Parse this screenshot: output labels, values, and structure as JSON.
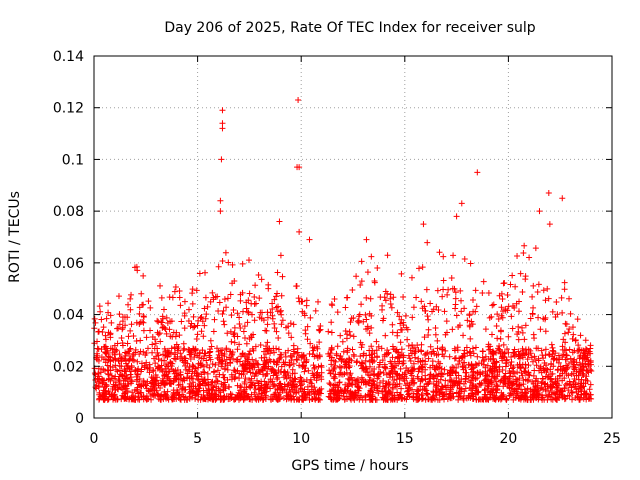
{
  "chart_data": {
    "type": "scatter",
    "title": "Day 206 of 2025, Rate Of TEC Index for receiver sulp",
    "xlabel": "GPS time / hours",
    "ylabel": "ROTI / TECUs",
    "xlim": [
      0,
      25
    ],
    "ylim": [
      0,
      0.14
    ],
    "xticks": [
      0,
      5,
      10,
      15,
      20,
      25
    ],
    "xtick_labels": [
      "0",
      "5",
      "10",
      "15",
      "20",
      "25"
    ],
    "yticks": [
      0,
      0.02,
      0.04,
      0.06,
      0.08,
      0.1,
      0.12,
      0.14
    ],
    "ytick_labels": [
      "0",
      "0.02",
      "0.04",
      "0.06",
      "0.08",
      "0.1",
      "0.12",
      "0.14"
    ],
    "grid": true,
    "marker": "+",
    "color": "#ff0000",
    "data_gap": [
      11.0,
      11.3
    ],
    "outliers": [
      {
        "x": 6.2,
        "y": 0.119
      },
      {
        "x": 6.2,
        "y": 0.114
      },
      {
        "x": 6.2,
        "y": 0.112
      },
      {
        "x": 6.15,
        "y": 0.1
      },
      {
        "x": 6.1,
        "y": 0.084
      },
      {
        "x": 6.1,
        "y": 0.08
      },
      {
        "x": 9.85,
        "y": 0.123
      },
      {
        "x": 9.9,
        "y": 0.097
      },
      {
        "x": 9.8,
        "y": 0.097
      },
      {
        "x": 9.9,
        "y": 0.072
      },
      {
        "x": 8.95,
        "y": 0.076
      },
      {
        "x": 10.4,
        "y": 0.069
      },
      {
        "x": 13.15,
        "y": 0.069
      },
      {
        "x": 17.75,
        "y": 0.083
      },
      {
        "x": 17.5,
        "y": 0.078
      },
      {
        "x": 18.5,
        "y": 0.095
      },
      {
        "x": 21.95,
        "y": 0.087
      },
      {
        "x": 22.6,
        "y": 0.085
      },
      {
        "x": 21.5,
        "y": 0.08
      },
      {
        "x": 22.0,
        "y": 0.075
      },
      {
        "x": 15.9,
        "y": 0.075
      }
    ],
    "envelope": [
      {
        "x": 0,
        "y": 0.05
      },
      {
        "x": 1,
        "y": 0.046
      },
      {
        "x": 2,
        "y": 0.06
      },
      {
        "x": 3,
        "y": 0.052
      },
      {
        "x": 4,
        "y": 0.052
      },
      {
        "x": 5,
        "y": 0.056
      },
      {
        "x": 6,
        "y": 0.064
      },
      {
        "x": 7,
        "y": 0.066
      },
      {
        "x": 8,
        "y": 0.058
      },
      {
        "x": 9,
        "y": 0.064
      },
      {
        "x": 10,
        "y": 0.062
      },
      {
        "x": 11,
        "y": 0.045
      },
      {
        "x": 12,
        "y": 0.05
      },
      {
        "x": 13,
        "y": 0.062
      },
      {
        "x": 14,
        "y": 0.068
      },
      {
        "x": 15,
        "y": 0.06
      },
      {
        "x": 16,
        "y": 0.068
      },
      {
        "x": 17,
        "y": 0.066
      },
      {
        "x": 18,
        "y": 0.07
      },
      {
        "x": 19,
        "y": 0.054
      },
      {
        "x": 20,
        "y": 0.058
      },
      {
        "x": 21,
        "y": 0.07
      },
      {
        "x": 22,
        "y": 0.066
      },
      {
        "x": 23,
        "y": 0.05
      },
      {
        "x": 24,
        "y": 0.03
      }
    ]
  }
}
